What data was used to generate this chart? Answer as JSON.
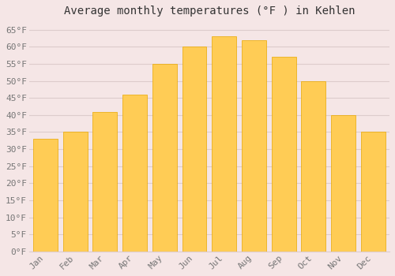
{
  "title": "Average monthly temperatures (°F ) in Kehlen",
  "months": [
    "Jan",
    "Feb",
    "Mar",
    "Apr",
    "May",
    "Jun",
    "Jul",
    "Aug",
    "Sep",
    "Oct",
    "Nov",
    "Dec"
  ],
  "values": [
    33,
    35,
    41,
    46,
    55,
    60,
    63,
    62,
    57,
    50,
    40,
    35
  ],
  "bar_color_top": "#FFB733",
  "bar_color_bottom": "#FFCC55",
  "bar_edge_color": "#E8A800",
  "background_color": "#F5E6E6",
  "plot_bg_color": "#F5E6E6",
  "grid_color": "#DDCCCC",
  "ylim": [
    0,
    67
  ],
  "yticks": [
    0,
    5,
    10,
    15,
    20,
    25,
    30,
    35,
    40,
    45,
    50,
    55,
    60,
    65
  ],
  "title_fontsize": 10,
  "tick_fontsize": 8,
  "font_family": "monospace",
  "tick_color": "#777777",
  "title_color": "#333333"
}
